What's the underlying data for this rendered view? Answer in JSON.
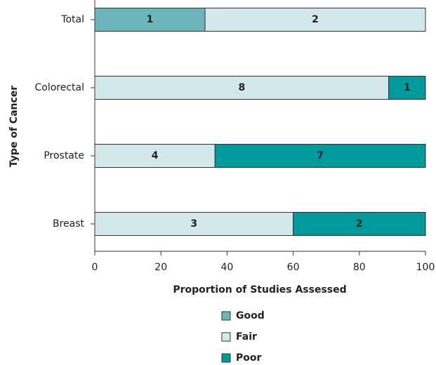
{
  "chart_data": {
    "type": "stacked_bar_horizontal",
    "stacking": "percent",
    "x_label": "Proportion of Studies Assessed",
    "y_label": "Type of Cancer",
    "categories": [
      "Total",
      "Colorectal",
      "Prostate",
      "Breast"
    ],
    "series": [
      {
        "name": "Good",
        "color": "#6bb5bb",
        "values": [
          1,
          null,
          null,
          null
        ]
      },
      {
        "name": "Fair",
        "color": "#d3e8ea",
        "values": [
          2,
          8,
          4,
          3
        ]
      },
      {
        "name": "Poor",
        "color": "#00999c",
        "values": [
          null,
          1,
          7,
          2
        ]
      }
    ],
    "xlim": [
      0,
      100
    ],
    "xticks": [
      0,
      20,
      40,
      60,
      80,
      100
    ]
  }
}
